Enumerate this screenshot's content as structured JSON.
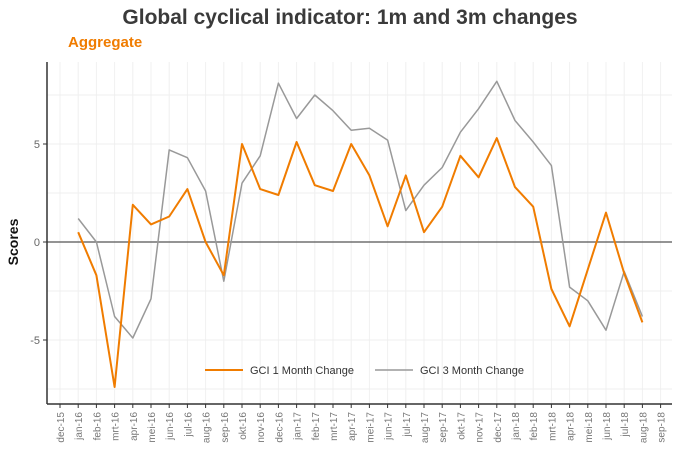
{
  "chart_data": {
    "type": "line",
    "title": "Global cyclical indicator: 1m and 3m changes",
    "subtitle": "Aggregate",
    "xlabel": "",
    "ylabel": "Scores",
    "ylim": [
      -8.3,
      9
    ],
    "yticks": [
      5,
      0,
      -5
    ],
    "grid": true,
    "legend_position": "bottom-center",
    "x_tick_labels": [
      "dec-15",
      "jan-16",
      "feb-16",
      "mrt-16",
      "apr-16",
      "mei-16",
      "jun-16",
      "jul-16",
      "aug-16",
      "sep-16",
      "okt-16",
      "nov-16",
      "dec-16",
      "jan-17",
      "feb-17",
      "mrt-17",
      "apr-17",
      "mei-17",
      "jun-17",
      "jul-17",
      "aug-17",
      "sep-17",
      "okt-17",
      "nov-17",
      "dec-17",
      "jan-18",
      "feb-18",
      "mrt-18",
      "apr-18",
      "mei-18",
      "jun-18",
      "jul-18",
      "aug-18",
      "sep-18"
    ],
    "x": [
      "jan-16",
      "feb-16",
      "mrt-16",
      "apr-16",
      "mei-16",
      "jun-16",
      "jul-16",
      "aug-16",
      "sep-16",
      "okt-16",
      "nov-16",
      "dec-16",
      "jan-17",
      "feb-17",
      "mrt-17",
      "apr-17",
      "mei-17",
      "jun-17",
      "jul-17",
      "aug-17",
      "sep-17",
      "okt-17",
      "nov-17",
      "dec-17",
      "jan-18",
      "feb-18",
      "mrt-18",
      "apr-18",
      "mei-18",
      "jun-18",
      "jul-18",
      "aug-18"
    ],
    "series": [
      {
        "name": "GCI 1 Month Change",
        "color": "#f07c00",
        "values": [
          0.5,
          -1.7,
          -7.4,
          1.9,
          0.9,
          1.3,
          2.7,
          0.0,
          -1.7,
          5.0,
          2.7,
          2.4,
          5.1,
          2.9,
          2.6,
          5.0,
          3.4,
          0.8,
          3.4,
          0.5,
          1.8,
          4.4,
          3.3,
          5.3,
          2.8,
          1.8,
          -2.4,
          -4.3,
          -1.4,
          1.5,
          -1.6,
          -4.1
        ]
      },
      {
        "name": "GCI 3 Month Change",
        "color": "#999999",
        "values": [
          1.2,
          0.0,
          -3.8,
          -4.9,
          -2.9,
          4.7,
          4.3,
          2.6,
          -2.0,
          3.0,
          4.4,
          8.1,
          6.3,
          7.5,
          6.7,
          5.7,
          5.8,
          5.2,
          1.6,
          2.9,
          3.8,
          5.6,
          6.8,
          8.2,
          6.2,
          5.1,
          3.9,
          -2.3,
          -3.0,
          -4.5,
          -1.5,
          -3.8
        ]
      }
    ]
  }
}
